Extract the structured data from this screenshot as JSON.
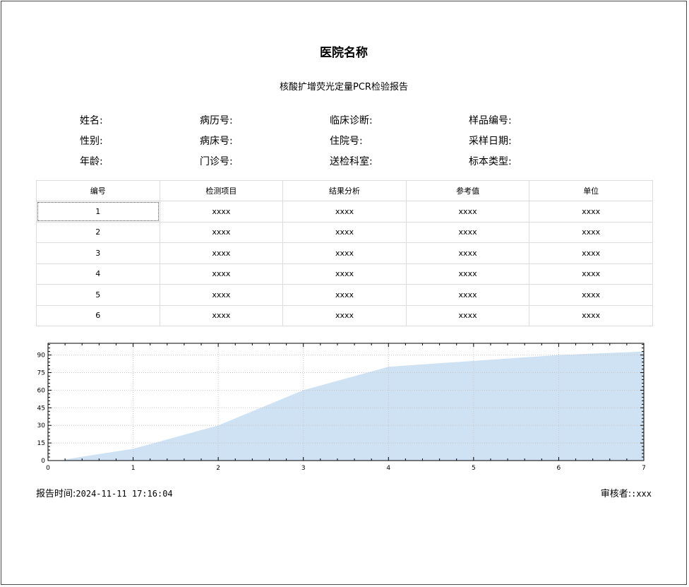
{
  "hospital_name": "医院名称",
  "report_title": "核酸扩增荧光定量PCR检验报告",
  "patient_info": {
    "name_label": "姓名:",
    "record_no_label": "病历号:",
    "diagnosis_label": "临床诊断:",
    "sample_no_label": "样品编号:",
    "gender_label": "性别:",
    "bed_no_label": "病床号:",
    "inpatient_no_label": "住院号:",
    "sampling_date_label": "采样日期:",
    "age_label": "年龄:",
    "outpatient_no_label": "门诊号:",
    "department_label": "送检科室:",
    "specimen_type_label": "标本类型:"
  },
  "table": {
    "headers": [
      "编号",
      "检测项目",
      "结果分析",
      "参考值",
      "单位"
    ],
    "rows": [
      [
        "1",
        "xxxx",
        "xxxx",
        "xxxx",
        "xxxx"
      ],
      [
        "2",
        "xxxx",
        "xxxx",
        "xxxx",
        "xxxx"
      ],
      [
        "3",
        "xxxx",
        "xxxx",
        "xxxx",
        "xxxx"
      ],
      [
        "4",
        "xxxx",
        "xxxx",
        "xxxx",
        "xxxx"
      ],
      [
        "5",
        "xxxx",
        "xxxx",
        "xxxx",
        "xxxx"
      ],
      [
        "6",
        "xxxx",
        "xxxx",
        "xxxx",
        "xxxx"
      ]
    ]
  },
  "chart_data": {
    "type": "area",
    "title": "",
    "xlabel": "",
    "ylabel": "",
    "xlim": [
      0,
      7
    ],
    "ylim": [
      0,
      100
    ],
    "x_ticks": [
      0,
      1,
      2,
      3,
      4,
      5,
      6,
      7
    ],
    "y_ticks": [
      0,
      15,
      30,
      45,
      60,
      75,
      90
    ],
    "grid": true,
    "fill_color": "#cfe2f3",
    "series": [
      {
        "x": [
          0.2,
          1,
          2,
          3,
          4,
          5,
          6,
          7
        ],
        "values": [
          1,
          10,
          30,
          60,
          80,
          85,
          90,
          93
        ]
      }
    ]
  },
  "footer": {
    "report_time_label": "报告时间:",
    "report_time_value": "2024-11-11 17:16:04",
    "reviewer_label": "审核者:",
    "reviewer_value": ":xxx"
  }
}
